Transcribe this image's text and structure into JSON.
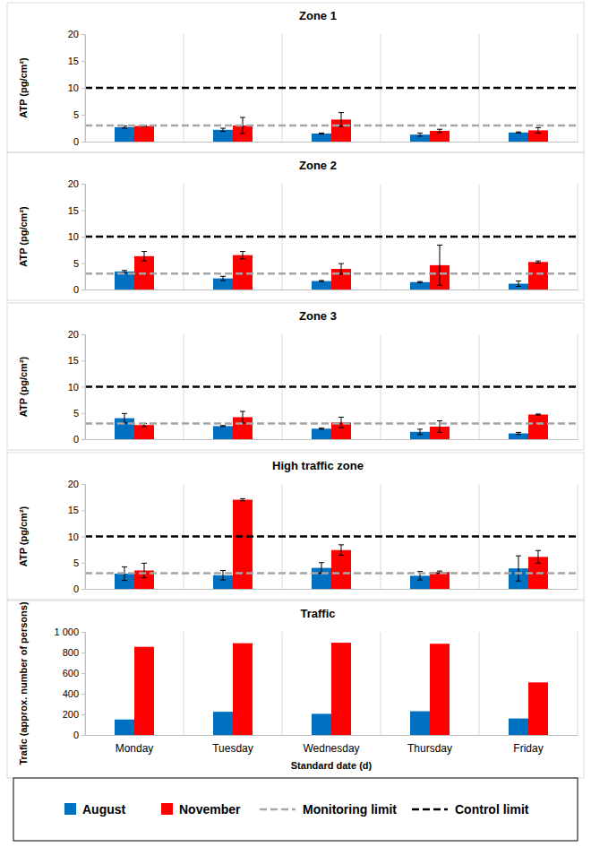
{
  "chart_data": [
    {
      "type": "bar",
      "title": "Zone 1",
      "ylabel": "ATP (pg/cm²)",
      "categories": [
        "Monday",
        "Tuesday",
        "Wednesday",
        "Thursday",
        "Friday"
      ],
      "series": [
        {
          "name": "August",
          "color": "#0070c0",
          "values": [
            2.7,
            2.2,
            1.5,
            1.3,
            1.7
          ],
          "errors": [
            0.2,
            0.3,
            0.1,
            0.3,
            0.1
          ]
        },
        {
          "name": "November",
          "color": "#ff0000",
          "values": [
            2.9,
            3.0,
            4.1,
            2.0,
            2.1
          ],
          "errors": [
            0.1,
            1.5,
            1.3,
            0.3,
            0.5
          ]
        }
      ],
      "limits": [
        {
          "name": "Monitoring limit",
          "value": 3,
          "color": "#a6a6a6",
          "line_style": "dashed"
        },
        {
          "name": "Control limit",
          "value": 10,
          "color": "#000000",
          "line_style": "dashed"
        }
      ],
      "ylim": [
        0,
        20
      ],
      "yticks": [
        0,
        5,
        10,
        15,
        20
      ],
      "grid": false,
      "tick_labels": "y",
      "legend": "bottom"
    },
    {
      "type": "bar",
      "title": "Zone 2",
      "ylabel": "ATP (pg/cm²)",
      "categories": [
        "Monday",
        "Tuesday",
        "Wednesday",
        "Thursday",
        "Friday"
      ],
      "series": [
        {
          "name": "August",
          "color": "#0070c0",
          "values": [
            3.4,
            2.1,
            1.6,
            1.4,
            1.1
          ],
          "errors": [
            0.2,
            0.4,
            0.1,
            0.1,
            0.5
          ]
        },
        {
          "name": "November",
          "color": "#ff0000",
          "values": [
            6.3,
            6.5,
            3.9,
            4.6,
            5.2
          ],
          "errors": [
            0.9,
            0.7,
            1.0,
            3.8,
            0.2
          ]
        }
      ],
      "limits": [
        {
          "name": "Monitoring limit",
          "value": 3,
          "color": "#a6a6a6",
          "line_style": "dashed"
        },
        {
          "name": "Control limit",
          "value": 10,
          "color": "#000000",
          "line_style": "dashed"
        }
      ],
      "ylim": [
        0,
        20
      ],
      "yticks": [
        0,
        5,
        10,
        15,
        20
      ],
      "grid": false,
      "tick_labels": "y"
    },
    {
      "type": "bar",
      "title": "Zone 3",
      "ylabel": "ATP (pg/cm²)",
      "categories": [
        "Monday",
        "Tuesday",
        "Wednesday",
        "Thursday",
        "Friday"
      ],
      "series": [
        {
          "name": "August",
          "color": "#0070c0",
          "values": [
            4.0,
            2.5,
            2.0,
            1.4,
            1.1
          ],
          "errors": [
            0.9,
            0.1,
            0.1,
            0.5,
            0.2
          ]
        },
        {
          "name": "November",
          "color": "#ff0000",
          "values": [
            2.7,
            4.2,
            3.2,
            2.4,
            4.7
          ],
          "errors": [
            0.3,
            1.1,
            1.0,
            1.1,
            0.1
          ]
        }
      ],
      "limits": [
        {
          "name": "Monitoring limit",
          "value": 3,
          "color": "#a6a6a6",
          "line_style": "dashed"
        },
        {
          "name": "Control limit",
          "value": 10,
          "color": "#000000",
          "line_style": "dashed"
        }
      ],
      "ylim": [
        0,
        20
      ],
      "yticks": [
        0,
        5,
        10,
        15,
        20
      ],
      "grid": false,
      "tick_labels": "y"
    },
    {
      "type": "bar",
      "title": "High traffic zone",
      "ylabel": "ATP (pg/cm²)",
      "categories": [
        "Monday",
        "Tuesday",
        "Wednesday",
        "Thursday",
        "Friday"
      ],
      "series": [
        {
          "name": "August",
          "color": "#0070c0",
          "values": [
            2.9,
            2.6,
            4.0,
            2.5,
            3.9
          ],
          "errors": [
            1.3,
            0.9,
            1.0,
            0.8,
            2.4
          ]
        },
        {
          "name": "November",
          "color": "#ff0000",
          "values": [
            3.5,
            17.0,
            7.4,
            3.2,
            6.1
          ],
          "errors": [
            1.4,
            0.2,
            1.0,
            0.2,
            1.2
          ]
        }
      ],
      "limits": [
        {
          "name": "Monitoring limit",
          "value": 3,
          "color": "#a6a6a6",
          "line_style": "dashed"
        },
        {
          "name": "Control limit",
          "value": 10,
          "color": "#000000",
          "line_style": "dashed"
        }
      ],
      "ylim": [
        0,
        20
      ],
      "yticks": [
        0,
        5,
        10,
        15,
        20
      ],
      "grid": false,
      "tick_labels": "y"
    },
    {
      "type": "bar",
      "title": "Traffic",
      "ylabel": "Trafic (approx. number of persons)",
      "xlabel": "Standard date (d)",
      "categories": [
        "Monday",
        "Tuesday",
        "Wednesday",
        "Thursday",
        "Friday"
      ],
      "series": [
        {
          "name": "August",
          "color": "#0070c0",
          "values": [
            150,
            225,
            205,
            230,
            160
          ]
        },
        {
          "name": "November",
          "color": "#ff0000",
          "values": [
            855,
            890,
            895,
            885,
            510
          ]
        }
      ],
      "ylim": [
        0,
        1000
      ],
      "yticks": [
        0,
        200,
        400,
        600,
        800,
        {
          "value": 1000,
          "label": "1 000"
        }
      ],
      "grid": false
    }
  ]
}
